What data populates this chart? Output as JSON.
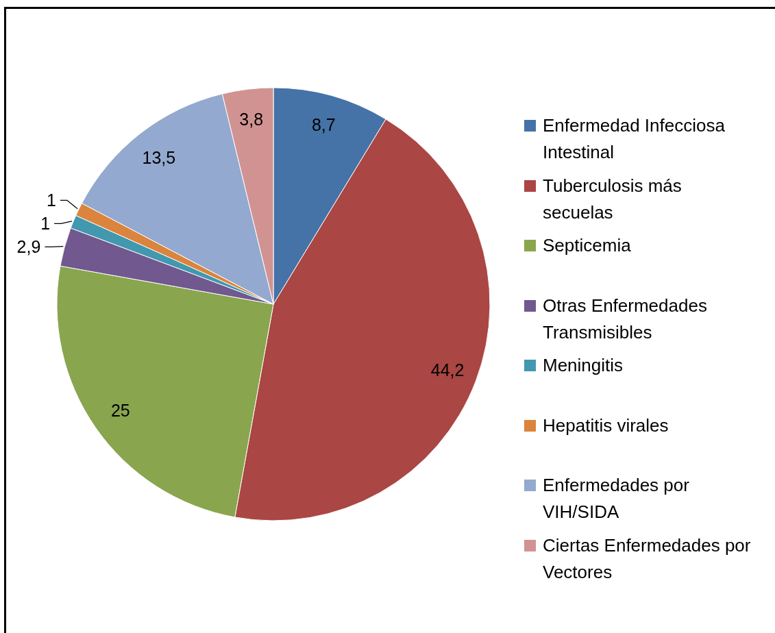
{
  "chart_data": {
    "type": "pie",
    "categories": [
      "Enfermedad Infecciosa Intestinal",
      "Tuberculosis más secuelas",
      "Septicemia",
      "Otras Enfermedades Transmisibles",
      "Meningitis",
      "Hepatitis virales",
      "Enfermedades por VIH/SIDA",
      "Ciertas Enfermedades por Vectores"
    ],
    "values": [
      8.7,
      44.2,
      25,
      2.9,
      1,
      1,
      13.5,
      3.8
    ],
    "colors": [
      "#4572a7",
      "#aa4643",
      "#89a54e",
      "#71588f",
      "#4198af",
      "#db843d",
      "#93a9cf",
      "#d19392"
    ],
    "value_labels": [
      "8,7",
      "44,2",
      "25",
      "2,9",
      "1",
      "1",
      "13,5",
      "3,8"
    ],
    "legend": "right"
  }
}
